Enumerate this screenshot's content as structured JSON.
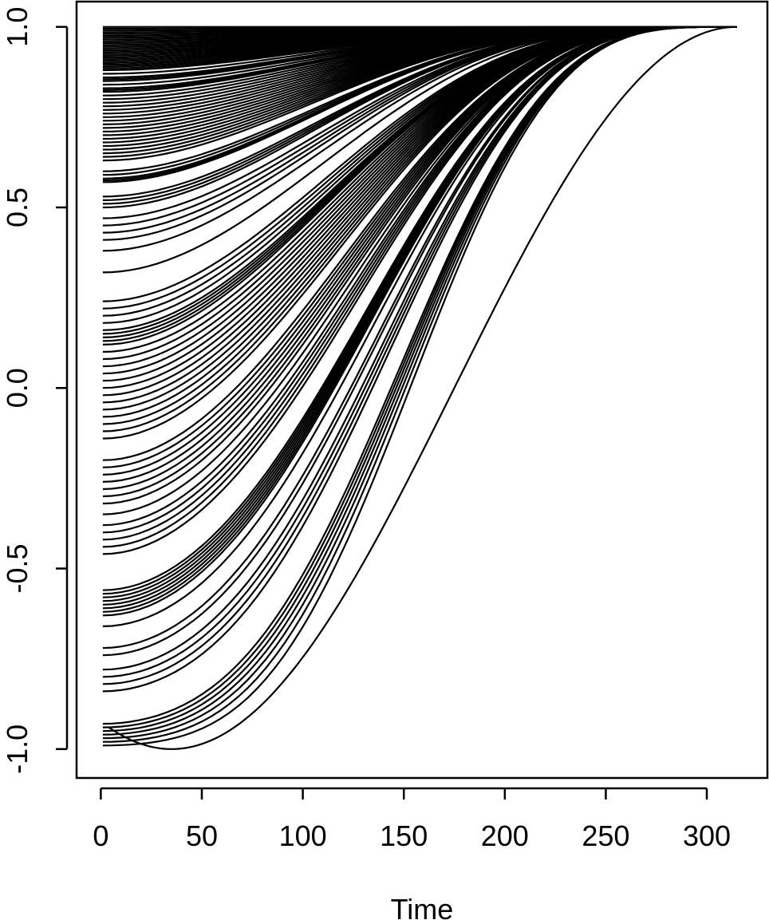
{
  "chart_data": {
    "type": "line",
    "title": "",
    "xlabel": "Time",
    "ylabel": "",
    "xlim": [
      -12,
      330
    ],
    "ylim": [
      -1.08,
      1.07
    ],
    "x_ticks": [
      0,
      50,
      100,
      150,
      200,
      250,
      300
    ],
    "x_tick_labels": [
      "0",
      "50",
      "100",
      "150",
      "200",
      "250",
      "300"
    ],
    "y_ticks": [
      -1.0,
      -0.5,
      0.0,
      0.5,
      1.0
    ],
    "y_tick_labels": [
      "-1.0",
      "-0.5",
      "0.0",
      "0.5",
      "1.0"
    ],
    "grid": false,
    "legend": "none",
    "line_color": "#000000",
    "x_range": [
      1,
      315
    ],
    "series_description": "Approximately 200 trajectories starting at Time 1 with values between -1.0 and 1.0, all rising smoothly to converge at 1.0 around Time 315; the lowest curve starts near -0.93, dips to -1.0 near Time 35 and rises to 1.0 at Time 315.",
    "start_values": [
      1.0,
      0.995,
      0.99,
      0.985,
      0.98,
      0.975,
      0.97,
      0.965,
      0.96,
      0.955,
      0.95,
      0.945,
      0.94,
      0.935,
      0.93,
      0.925,
      0.92,
      0.915,
      0.91,
      0.905,
      0.9,
      0.895,
      0.89,
      0.885,
      0.88,
      0.87,
      0.86,
      0.855,
      0.85,
      0.84,
      0.83,
      0.825,
      0.82,
      0.81,
      0.8,
      0.79,
      0.78,
      0.77,
      0.76,
      0.75,
      0.74,
      0.73,
      0.72,
      0.71,
      0.7,
      0.69,
      0.68,
      0.67,
      0.66,
      0.65,
      0.64,
      0.63,
      0.6,
      0.59,
      0.58,
      0.575,
      0.57,
      0.53,
      0.52,
      0.51,
      0.5,
      0.47,
      0.45,
      0.43,
      0.41,
      0.38,
      0.32,
      0.24,
      0.22,
      0.2,
      0.18,
      0.16,
      0.15,
      0.14,
      0.13,
      0.12,
      0.1,
      0.08,
      0.06,
      0.04,
      0.02,
      0.0,
      -0.02,
      -0.04,
      -0.06,
      -0.08,
      -0.1,
      -0.12,
      -0.14,
      -0.2,
      -0.22,
      -0.24,
      -0.26,
      -0.28,
      -0.3,
      -0.32,
      -0.35,
      -0.38,
      -0.4,
      -0.42,
      -0.44,
      -0.46,
      -0.56,
      -0.57,
      -0.58,
      -0.59,
      -0.6,
      -0.61,
      -0.62,
      -0.63,
      -0.66,
      -0.72,
      -0.74,
      -0.78,
      -0.8,
      -0.82,
      -0.84,
      -0.93,
      -0.94,
      -0.95,
      -0.96,
      -0.97,
      -0.98,
      -0.99
    ]
  }
}
